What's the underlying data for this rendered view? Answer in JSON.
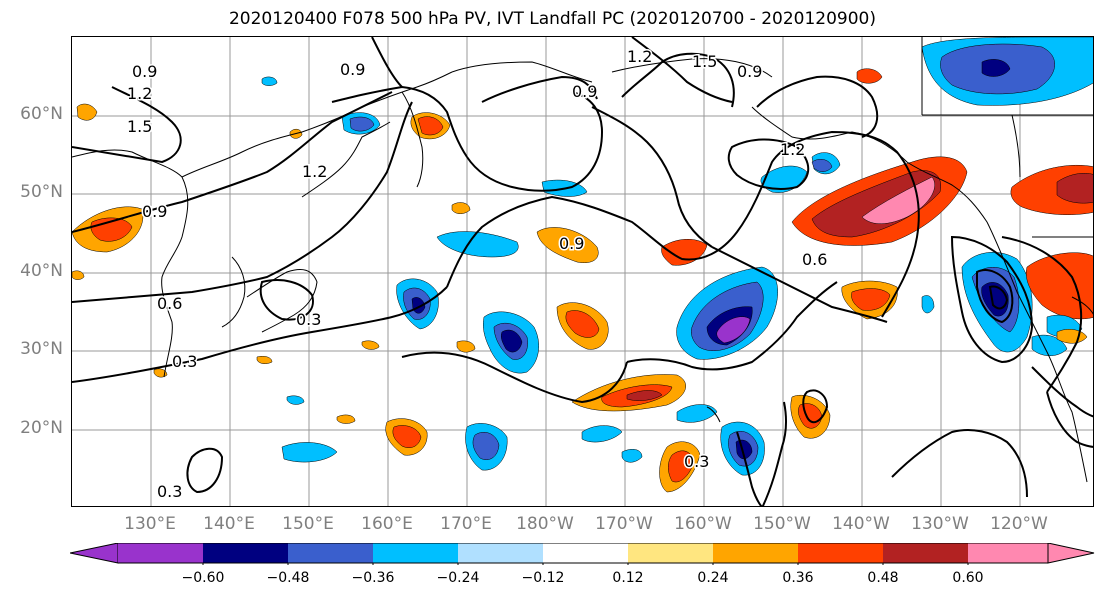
{
  "title": "2020120400 F078 500 hPa PV, IVT Landfall PC (2020120700 - 2020120900)",
  "lat_labels": [
    "60°N",
    "50°N",
    "40°N",
    "30°N",
    "20°N"
  ],
  "lon_labels": [
    "130°E",
    "140°E",
    "150°E",
    "160°E",
    "170°E",
    "180°W",
    "170°W",
    "160°W",
    "150°W",
    "140°W",
    "130°W",
    "120°W"
  ],
  "contour_labels": [
    "0.9",
    "1.2",
    "1.5",
    "0.9",
    "0.9",
    "1.2",
    "1.5",
    "0.9",
    "1.2",
    "0.9",
    "0.6",
    "0.3",
    "0.3",
    "0.9",
    "0.6",
    "0.3",
    "0.3",
    "1.2"
  ],
  "colorbar": {
    "ticks": [
      "−0.60",
      "−0.48",
      "−0.36",
      "−0.24",
      "−0.12",
      "0.12",
      "0.24",
      "0.36",
      "0.48",
      "0.60"
    ],
    "colors": [
      "#9933cc",
      "#000080",
      "#3a5fcd",
      "#00bfff",
      "#b0e0ff",
      "#ffffff",
      "#ffe680",
      "#ffa500",
      "#ff4000",
      "#b22222",
      "#ff88b0"
    ]
  }
}
